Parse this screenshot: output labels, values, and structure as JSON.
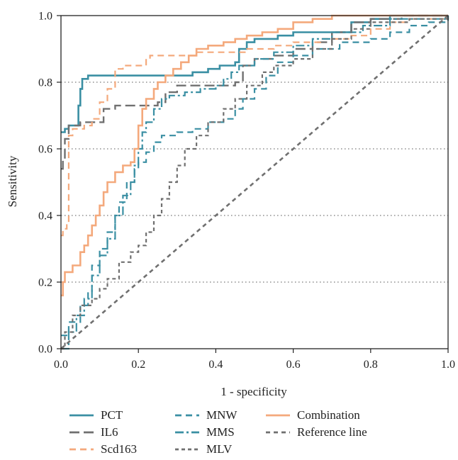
{
  "chart_data": {
    "type": "line",
    "title": "",
    "xlabel": "1 - specificity",
    "ylabel": "Sensitivity",
    "xlim": [
      0,
      1
    ],
    "ylim": [
      0,
      1
    ],
    "x_ticks": [
      "0.0",
      "0.2",
      "0.4",
      "0.6",
      "0.8",
      "1.0"
    ],
    "y_ticks": [
      "0.0",
      "0.2",
      "0.4",
      "0.6",
      "0.8",
      "1.0"
    ],
    "grid": "horizontal dotted at 0.2, 0.4, 0.6, 0.8",
    "legend_position": "bottom",
    "series": [
      {
        "name": "PCT",
        "color": "#3a8fa3",
        "dash": "solid",
        "points": [
          [
            0,
            0.65
          ],
          [
            0.01,
            0.66
          ],
          [
            0.02,
            0.67
          ],
          [
            0.04,
            0.67
          ],
          [
            0.045,
            0.73
          ],
          [
            0.05,
            0.78
          ],
          [
            0.055,
            0.81
          ],
          [
            0.07,
            0.82
          ],
          [
            0.28,
            0.82
          ],
          [
            0.32,
            0.82
          ],
          [
            0.34,
            0.83
          ],
          [
            0.38,
            0.84
          ],
          [
            0.41,
            0.85
          ],
          [
            0.45,
            0.86
          ],
          [
            0.46,
            0.9
          ],
          [
            0.48,
            0.92
          ],
          [
            0.5,
            0.93
          ],
          [
            0.56,
            0.94
          ],
          [
            0.6,
            0.95
          ],
          [
            0.74,
            0.95
          ],
          [
            0.75,
            0.98
          ],
          [
            0.8,
            0.99
          ],
          [
            0.85,
            1.0
          ],
          [
            1.0,
            1.0
          ]
        ]
      },
      {
        "name": "IL6",
        "color": "#707070",
        "dash": "long",
        "points": [
          [
            0,
            0.54
          ],
          [
            0.005,
            0.57
          ],
          [
            0.01,
            0.63
          ],
          [
            0.02,
            0.67
          ],
          [
            0.05,
            0.68
          ],
          [
            0.1,
            0.68
          ],
          [
            0.11,
            0.72
          ],
          [
            0.14,
            0.73
          ],
          [
            0.25,
            0.74
          ],
          [
            0.27,
            0.77
          ],
          [
            0.3,
            0.79
          ],
          [
            0.4,
            0.79
          ],
          [
            0.45,
            0.8
          ],
          [
            0.47,
            0.85
          ],
          [
            0.5,
            0.87
          ],
          [
            0.55,
            0.88
          ],
          [
            0.6,
            0.9
          ],
          [
            0.65,
            0.92
          ],
          [
            0.7,
            0.95
          ],
          [
            0.75,
            0.98
          ],
          [
            0.8,
            0.99
          ],
          [
            0.88,
            1.0
          ],
          [
            1.0,
            1.0
          ]
        ]
      },
      {
        "name": "Scd163",
        "color": "#f4a97c",
        "dash": "medium",
        "points": [
          [
            0,
            0.34
          ],
          [
            0.005,
            0.36
          ],
          [
            0.015,
            0.38
          ],
          [
            0.02,
            0.64
          ],
          [
            0.03,
            0.66
          ],
          [
            0.06,
            0.67
          ],
          [
            0.08,
            0.69
          ],
          [
            0.1,
            0.74
          ],
          [
            0.12,
            0.78
          ],
          [
            0.14,
            0.84
          ],
          [
            0.16,
            0.85
          ],
          [
            0.22,
            0.87
          ],
          [
            0.23,
            0.88
          ],
          [
            0.3,
            0.88
          ],
          [
            0.35,
            0.89
          ],
          [
            0.45,
            0.89
          ],
          [
            0.48,
            0.9
          ],
          [
            0.55,
            0.91
          ],
          [
            0.6,
            0.92
          ],
          [
            0.67,
            0.93
          ],
          [
            0.75,
            0.94
          ],
          [
            0.8,
            0.96
          ],
          [
            0.85,
            0.98
          ],
          [
            0.9,
            0.99
          ],
          [
            1.0,
            1.0
          ]
        ]
      },
      {
        "name": "MNW",
        "color": "#3a8fa3",
        "dash": "medium",
        "points": [
          [
            0,
            0.04
          ],
          [
            0.02,
            0.08
          ],
          [
            0.05,
            0.13
          ],
          [
            0.07,
            0.17
          ],
          [
            0.08,
            0.25
          ],
          [
            0.1,
            0.3
          ],
          [
            0.12,
            0.35
          ],
          [
            0.14,
            0.4
          ],
          [
            0.15,
            0.44
          ],
          [
            0.17,
            0.5
          ],
          [
            0.19,
            0.54
          ],
          [
            0.2,
            0.56
          ],
          [
            0.22,
            0.59
          ],
          [
            0.24,
            0.62
          ],
          [
            0.26,
            0.64
          ],
          [
            0.3,
            0.65
          ],
          [
            0.34,
            0.66
          ],
          [
            0.38,
            0.68
          ],
          [
            0.42,
            0.69
          ],
          [
            0.45,
            0.72
          ],
          [
            0.47,
            0.75
          ],
          [
            0.5,
            0.78
          ],
          [
            0.53,
            0.82
          ],
          [
            0.56,
            0.86
          ],
          [
            0.6,
            0.88
          ],
          [
            0.65,
            0.9
          ],
          [
            0.72,
            0.92
          ],
          [
            0.8,
            0.93
          ],
          [
            0.85,
            0.95
          ],
          [
            0.9,
            0.97
          ],
          [
            0.95,
            0.98
          ],
          [
            1.0,
            1.0
          ]
        ]
      },
      {
        "name": "MMS",
        "color": "#3a8fa3",
        "dash": "dashdot",
        "points": [
          [
            0,
            0.0
          ],
          [
            0.02,
            0.05
          ],
          [
            0.04,
            0.1
          ],
          [
            0.06,
            0.15
          ],
          [
            0.08,
            0.22
          ],
          [
            0.1,
            0.28
          ],
          [
            0.12,
            0.33
          ],
          [
            0.14,
            0.4
          ],
          [
            0.16,
            0.46
          ],
          [
            0.18,
            0.5
          ],
          [
            0.19,
            0.55
          ],
          [
            0.2,
            0.6
          ],
          [
            0.21,
            0.65
          ],
          [
            0.22,
            0.68
          ],
          [
            0.24,
            0.72
          ],
          [
            0.26,
            0.75
          ],
          [
            0.28,
            0.76
          ],
          [
            0.32,
            0.77
          ],
          [
            0.36,
            0.78
          ],
          [
            0.4,
            0.79
          ],
          [
            0.42,
            0.81
          ],
          [
            0.44,
            0.83
          ],
          [
            0.46,
            0.85
          ],
          [
            0.5,
            0.87
          ],
          [
            0.55,
            0.89
          ],
          [
            0.6,
            0.91
          ],
          [
            0.65,
            0.93
          ],
          [
            0.7,
            0.95
          ],
          [
            0.78,
            0.97
          ],
          [
            0.85,
            0.99
          ],
          [
            1.0,
            1.0
          ]
        ]
      },
      {
        "name": "MLV",
        "color": "#707070",
        "dash": "short",
        "points": [
          [
            0,
            0.0
          ],
          [
            0.01,
            0.05
          ],
          [
            0.03,
            0.1
          ],
          [
            0.05,
            0.13
          ],
          [
            0.08,
            0.15
          ],
          [
            0.1,
            0.18
          ],
          [
            0.12,
            0.21
          ],
          [
            0.15,
            0.26
          ],
          [
            0.18,
            0.29
          ],
          [
            0.2,
            0.31
          ],
          [
            0.22,
            0.35
          ],
          [
            0.24,
            0.4
          ],
          [
            0.26,
            0.45
          ],
          [
            0.28,
            0.5
          ],
          [
            0.3,
            0.55
          ],
          [
            0.32,
            0.6
          ],
          [
            0.35,
            0.64
          ],
          [
            0.38,
            0.68
          ],
          [
            0.42,
            0.72
          ],
          [
            0.45,
            0.75
          ],
          [
            0.48,
            0.79
          ],
          [
            0.52,
            0.83
          ],
          [
            0.55,
            0.85
          ],
          [
            0.6,
            0.87
          ],
          [
            0.65,
            0.9
          ],
          [
            0.7,
            0.93
          ],
          [
            0.75,
            0.96
          ],
          [
            0.8,
            0.98
          ],
          [
            0.9,
            0.99
          ],
          [
            1.0,
            1.0
          ]
        ]
      },
      {
        "name": "Combination",
        "color": "#f4a97c",
        "dash": "solid",
        "points": [
          [
            0,
            0.16
          ],
          [
            0.005,
            0.2
          ],
          [
            0.01,
            0.23
          ],
          [
            0.03,
            0.25
          ],
          [
            0.05,
            0.29
          ],
          [
            0.06,
            0.31
          ],
          [
            0.07,
            0.34
          ],
          [
            0.08,
            0.37
          ],
          [
            0.09,
            0.4
          ],
          [
            0.1,
            0.43
          ],
          [
            0.11,
            0.47
          ],
          [
            0.12,
            0.5
          ],
          [
            0.14,
            0.53
          ],
          [
            0.16,
            0.55
          ],
          [
            0.18,
            0.56
          ],
          [
            0.19,
            0.6
          ],
          [
            0.2,
            0.67
          ],
          [
            0.21,
            0.72
          ],
          [
            0.22,
            0.75
          ],
          [
            0.24,
            0.78
          ],
          [
            0.25,
            0.8
          ],
          [
            0.27,
            0.82
          ],
          [
            0.29,
            0.84
          ],
          [
            0.31,
            0.86
          ],
          [
            0.33,
            0.88
          ],
          [
            0.35,
            0.9
          ],
          [
            0.38,
            0.91
          ],
          [
            0.42,
            0.92
          ],
          [
            0.45,
            0.93
          ],
          [
            0.48,
            0.94
          ],
          [
            0.52,
            0.95
          ],
          [
            0.56,
            0.96
          ],
          [
            0.6,
            0.98
          ],
          [
            0.65,
            0.99
          ],
          [
            0.7,
            1.0
          ],
          [
            1.0,
            1.0
          ]
        ]
      },
      {
        "name": "Reference line",
        "color": "#707070",
        "dash": "reference",
        "points": [
          [
            0,
            0
          ],
          [
            1,
            1
          ]
        ]
      }
    ]
  }
}
